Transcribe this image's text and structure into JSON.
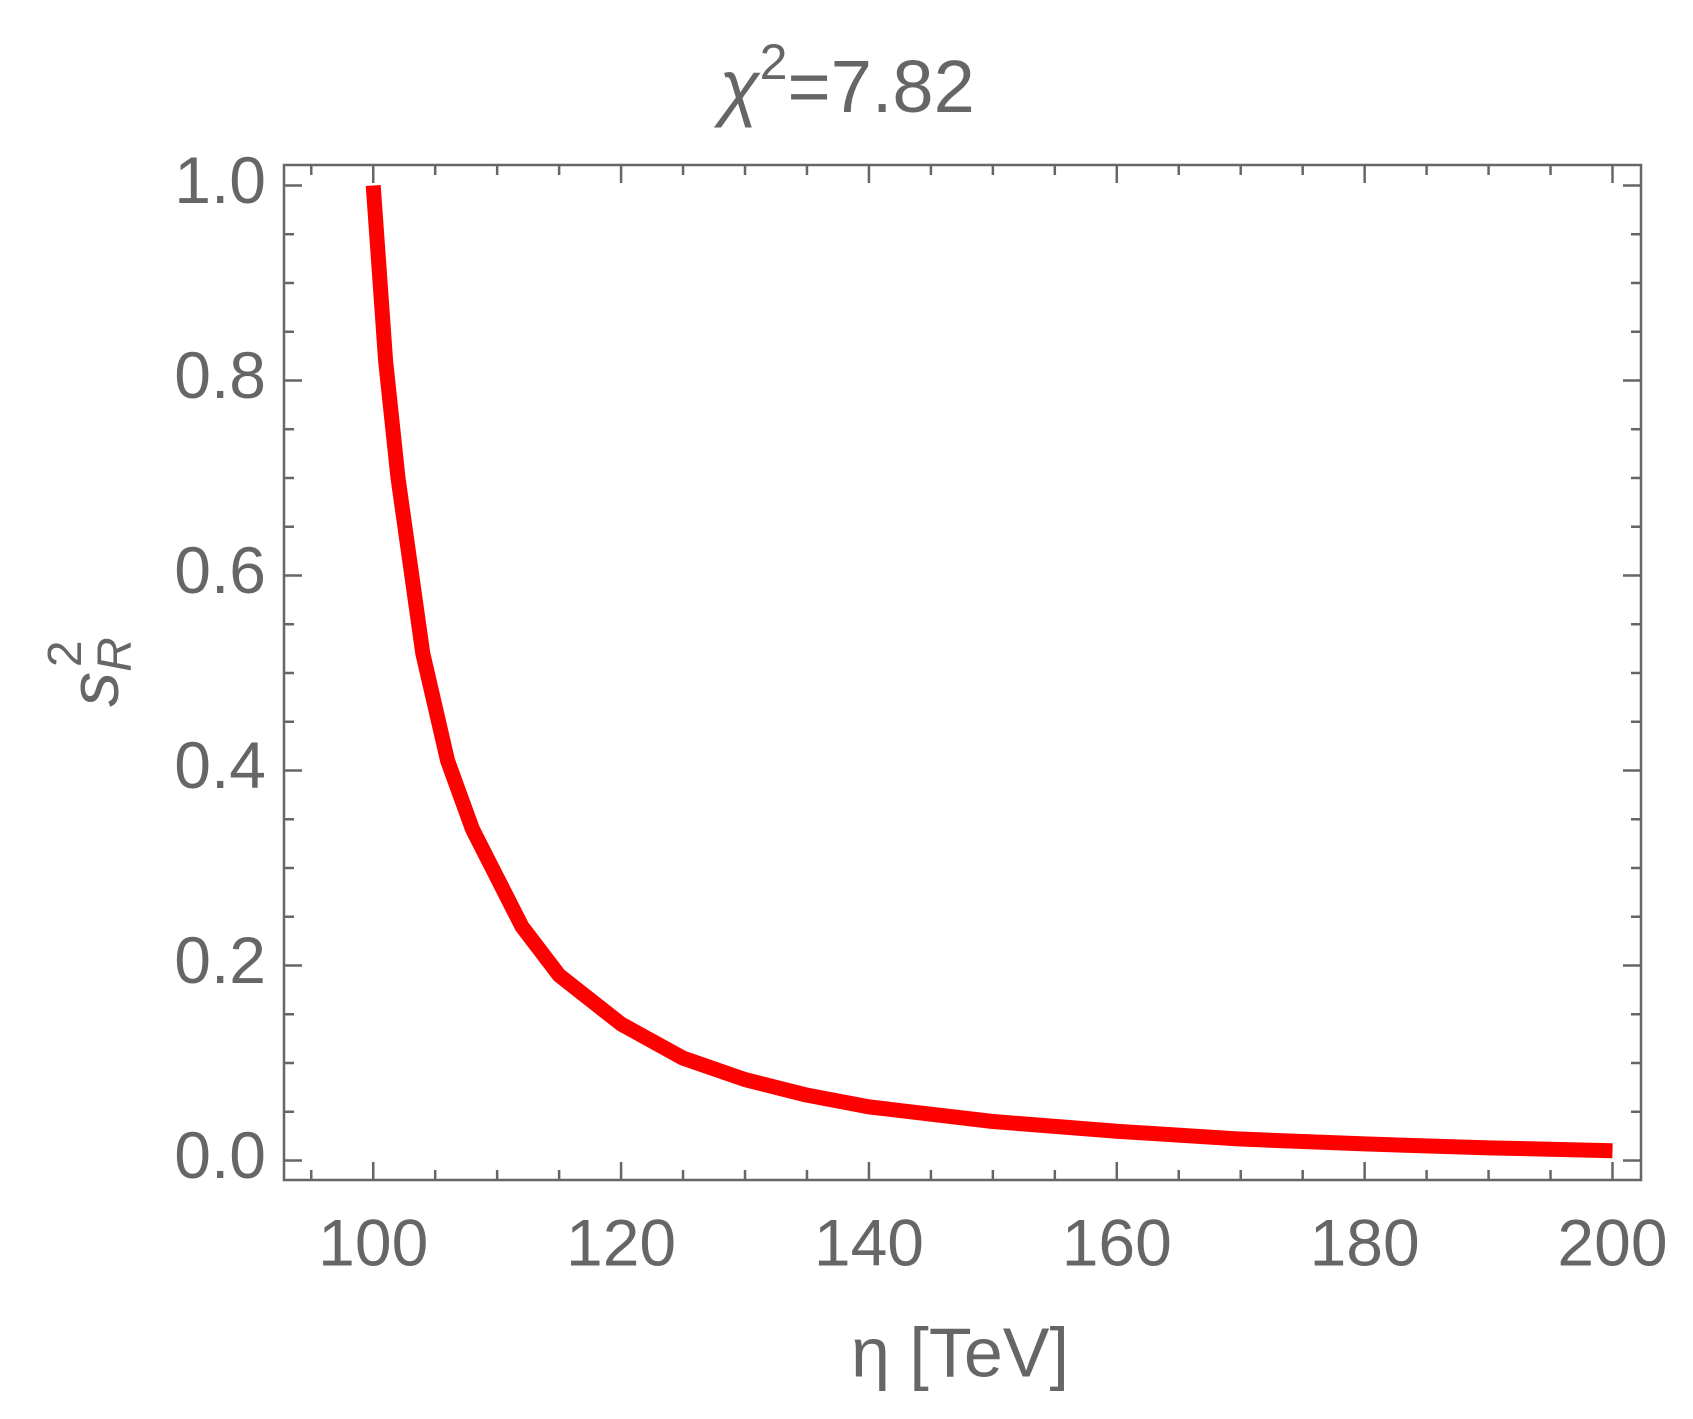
{
  "chart_data": {
    "type": "line",
    "title": {
      "base": "χ",
      "sup": "2",
      "rest": "=7.82"
    },
    "x_label": "η [TeV]",
    "y_label": {
      "base": "s",
      "sub": "R",
      "sup": "2"
    },
    "x": [
      100,
      101,
      102,
      104,
      106,
      108,
      110,
      112,
      115,
      120,
      125,
      130,
      135,
      140,
      150,
      160,
      170,
      180,
      190,
      200
    ],
    "series": [
      {
        "color": "#ff0000",
        "values": [
          1.0,
          0.82,
          0.7,
          0.52,
          0.41,
          0.34,
          0.29,
          0.24,
          0.19,
          0.14,
          0.105,
          0.083,
          0.067,
          0.055,
          0.04,
          0.03,
          0.022,
          0.017,
          0.013,
          0.01
        ]
      }
    ],
    "xlim": [
      92.8,
      202.3
    ],
    "ylim": [
      -0.02,
      1.021
    ],
    "xticks": [
      100,
      120,
      140,
      160,
      180,
      200
    ],
    "yticks": [
      {
        "value": 0,
        "label": "0.0"
      },
      0.2,
      0.4,
      0.6,
      0.8,
      {
        "value": 1,
        "label": "1.0"
      }
    ],
    "xminorticks": [
      95,
      105,
      110,
      115,
      125,
      130,
      135,
      145,
      150,
      155,
      165,
      170,
      175,
      185,
      190,
      195
    ],
    "yminorticks": [
      0.05,
      0.1,
      0.15,
      0.25,
      0.3,
      0.35,
      0.45,
      0.5,
      0.55,
      0.65,
      0.7,
      0.75,
      0.85,
      0.9,
      0.95
    ],
    "grid": false
  }
}
